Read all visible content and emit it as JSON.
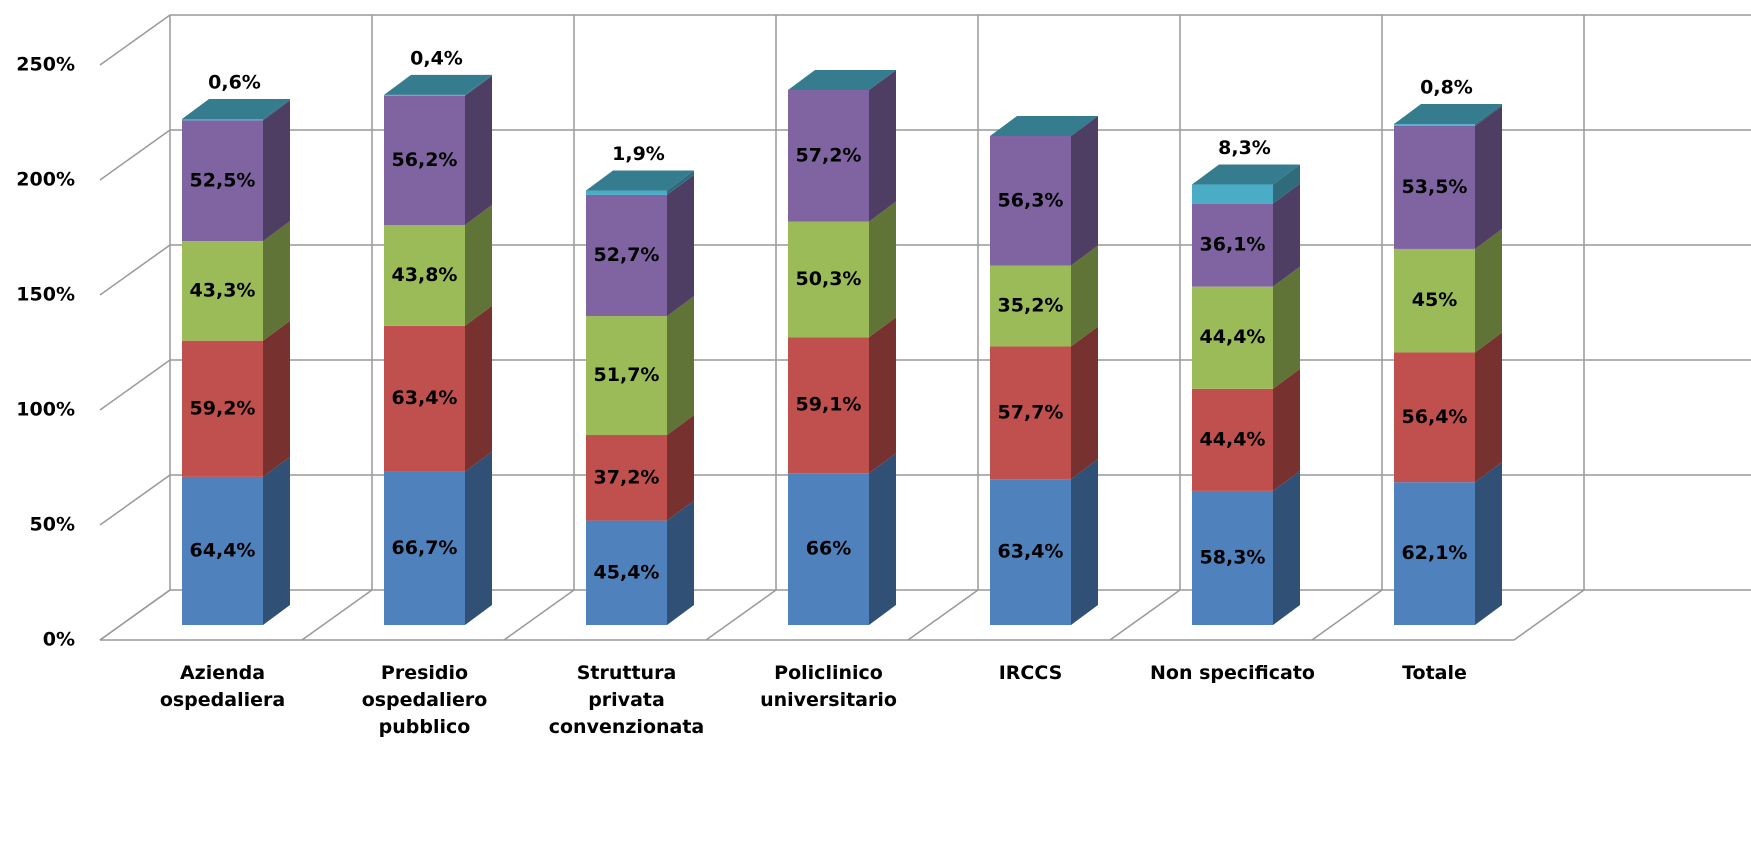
{
  "chart_data": {
    "type": "bar3d_stacked",
    "categories": [
      "Azienda ospedaliera",
      "Presidio ospedaliero pubblico",
      "Struttura privata convenzionata",
      "Policlinico universitario",
      "IRCCS",
      "Non specificato",
      "Totale"
    ],
    "series": [
      {
        "color": "#4f81bd",
        "values": [
          64.4,
          66.7,
          45.4,
          66,
          63.4,
          58.3,
          62.1
        ],
        "value_labels": [
          "64,4%",
          "66,7%",
          "45,4%",
          "66%",
          "63,4%",
          "58,3%",
          "62,1%"
        ]
      },
      {
        "color": "#c0504d",
        "values": [
          59.2,
          63.4,
          37.2,
          59.1,
          57.7,
          44.4,
          56.4
        ],
        "value_labels": [
          "59,2%",
          "63,4%",
          "37,2%",
          "59,1%",
          "57,7%",
          "44,4%",
          "56,4%"
        ]
      },
      {
        "color": "#9bbb59",
        "values": [
          43.3,
          43.8,
          51.7,
          50.3,
          35.2,
          44.4,
          45
        ],
        "value_labels": [
          "43,3%",
          "43,8%",
          "51,7%",
          "50,3%",
          "35,2%",
          "44,4%",
          "45%"
        ]
      },
      {
        "color": "#8064a2",
        "values": [
          52.5,
          56.2,
          52.7,
          57.2,
          56.3,
          36.1,
          53.5
        ],
        "value_labels": [
          "52,5%",
          "56,2%",
          "52,7%",
          "57,2%",
          "56,3%",
          "36,1%",
          "53,5%"
        ]
      },
      {
        "color": "#4bacc6",
        "values": [
          0.6,
          0.4,
          1.9,
          null,
          null,
          8.3,
          0.8
        ],
        "value_labels": [
          "0,6%",
          "0,4%",
          "1,9%",
          null,
          null,
          "8,3%",
          "0,8%"
        ]
      }
    ],
    "ylim": [
      0,
      250
    ],
    "yticks": [
      {
        "value": 0,
        "label": "0%"
      },
      {
        "value": 50,
        "label": "50%"
      },
      {
        "value": 100,
        "label": "100%"
      },
      {
        "value": 150,
        "label": "150%"
      },
      {
        "value": 200,
        "label": "200%"
      },
      {
        "value": 250,
        "label": "250%"
      }
    ],
    "grid": true
  }
}
